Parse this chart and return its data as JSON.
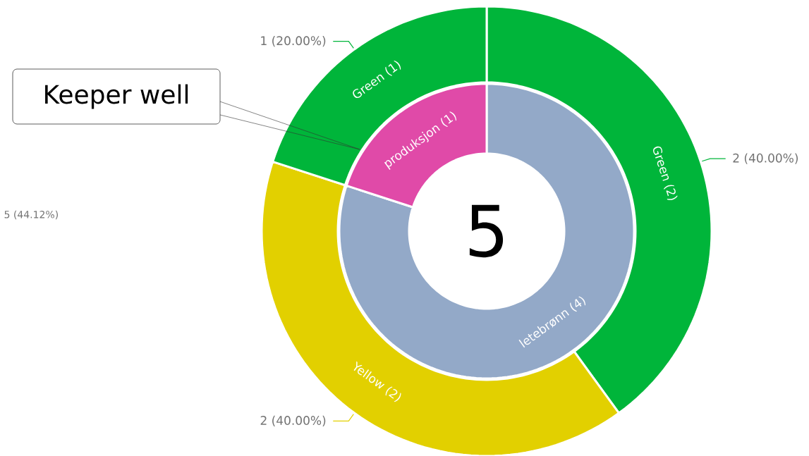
{
  "chart_data": [
    {
      "type": "donut",
      "categories": [
        "letebrønn (4)",
        "produksjon (1)"
      ],
      "values": [
        4,
        1
      ],
      "colors": [
        "#93a9c8",
        "#e04aa8"
      ],
      "annotations": [
        "5"
      ]
    },
    {
      "type": "donut",
      "categories": [
        "Green (2)",
        "Yellow (2)",
        "Green (1)"
      ],
      "values": [
        2,
        2,
        1
      ],
      "colors": [
        "#00b53a",
        "#e2d000",
        "#00b53a"
      ],
      "value_labels": [
        "2 (40.00%)",
        "2 (40.00%)",
        "1 (20.00%)"
      ],
      "annotations": [
        "Keeper well",
        "5 (44.12%)"
      ]
    }
  ]
}
